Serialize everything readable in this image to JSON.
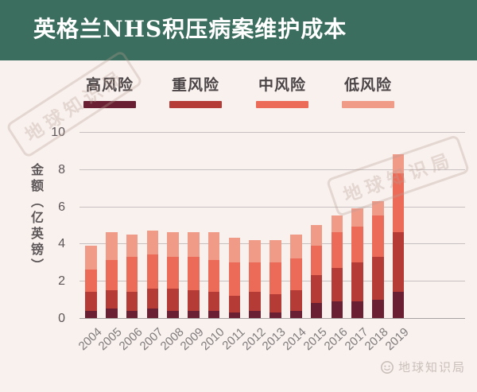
{
  "header": {
    "title": "英格兰NHS积压病案维护成本"
  },
  "legend": {
    "items": [
      {
        "label": "高风险",
        "color": "#6a2032"
      },
      {
        "label": "重风险",
        "color": "#b43b36"
      },
      {
        "label": "中风险",
        "color": "#ec6a58"
      },
      {
        "label": "低风险",
        "color": "#f09a88"
      }
    ]
  },
  "chart_data": {
    "type": "bar",
    "stacked": true,
    "title": "英格兰NHS积压病案维护成本",
    "ylabel": "金额（亿英镑）",
    "xlabel": "",
    "categories": [
      "2004",
      "2005",
      "2006",
      "2007",
      "2008",
      "2009",
      "2010",
      "2011",
      "2012",
      "2013",
      "2014",
      "2015",
      "2016",
      "2017",
      "2018",
      "2019"
    ],
    "series": [
      {
        "name": "高风险",
        "color": "#6a2032",
        "values": [
          0.4,
          0.5,
          0.4,
          0.5,
          0.4,
          0.4,
          0.4,
          0.3,
          0.4,
          0.3,
          0.4,
          0.8,
          0.9,
          0.9,
          1.0,
          1.4
        ]
      },
      {
        "name": "重风险",
        "color": "#b43b36",
        "values": [
          1.0,
          1.0,
          1.0,
          1.1,
          1.2,
          1.1,
          1.0,
          0.9,
          1.0,
          1.0,
          1.1,
          1.5,
          1.8,
          2.1,
          2.3,
          3.2
        ]
      },
      {
        "name": "中风险",
        "color": "#ec6a58",
        "values": [
          1.2,
          1.6,
          1.9,
          1.8,
          1.7,
          1.8,
          1.7,
          1.8,
          1.6,
          1.7,
          1.7,
          1.6,
          1.9,
          1.9,
          2.2,
          3.2
        ]
      },
      {
        "name": "低风险",
        "color": "#f09a88",
        "values": [
          1.3,
          1.5,
          1.2,
          1.3,
          1.3,
          1.3,
          1.5,
          1.3,
          1.2,
          1.2,
          1.3,
          1.1,
          0.9,
          1.0,
          0.8,
          1.0
        ]
      }
    ],
    "totals": [
      3.9,
      4.6,
      4.5,
      4.7,
      4.6,
      4.6,
      4.6,
      4.3,
      4.2,
      4.2,
      4.5,
      5.0,
      5.5,
      5.9,
      6.3,
      8.8
    ],
    "ylim": [
      0,
      10
    ],
    "yticks": [
      0,
      2,
      4,
      6,
      8,
      10
    ],
    "grid": true,
    "legend_position": "top"
  },
  "watermark": {
    "text": "地球知识局"
  },
  "footer": {
    "logo_text": "地球知识局"
  },
  "colors": {
    "header_bg": "#3b6e5e",
    "page_bg": "#f9f1ee",
    "grid": "#c6c0c1",
    "axis": "#a8a2a3",
    "tick_text": "#5c5658",
    "xlabel_text": "#807c7d",
    "legend_text": "#4b4547",
    "watermark": "#b99f94",
    "footer_text": "#cabfb9"
  }
}
